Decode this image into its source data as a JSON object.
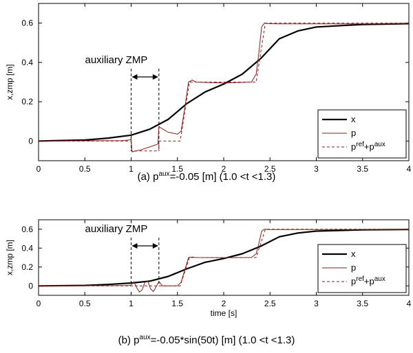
{
  "chart_data": [
    {
      "type": "line",
      "panel": "a",
      "ylabel": "x,zmp [m]",
      "xlabel": "",
      "xlim": [
        0,
        4
      ],
      "ylim": [
        -0.1,
        0.7
      ],
      "xticks": [
        "0",
        "0.5",
        "1",
        "1.5",
        "2",
        "2.5",
        "3",
        "3.5",
        "4"
      ],
      "yticks": [
        "0",
        "0.2",
        "0.4",
        "0.6"
      ],
      "annotation": "auxiliary ZMP",
      "annotation_span": [
        1.0,
        1.3
      ],
      "caption_main": "(a) p",
      "caption_sup": "aux",
      "caption_rest": "=-0.05 [m] (1.0 <t <1.3)",
      "legend": [
        {
          "key": "x",
          "label": "x",
          "sup1": "",
          "mid": "",
          "sup2": ""
        },
        {
          "key": "p",
          "label": "p",
          "sup1": "",
          "mid": "",
          "sup2": ""
        },
        {
          "key": "pref",
          "label": "p",
          "sup1": "ref",
          "mid": "+p",
          "sup2": "aux"
        }
      ],
      "legend_position": "bottom-right",
      "grid": false,
      "series": [
        {
          "name": "x",
          "color": "#000000",
          "style": "solid",
          "x": [
            0,
            0.5,
            0.75,
            1.0,
            1.2,
            1.4,
            1.6,
            1.8,
            2.0,
            2.2,
            2.4,
            2.6,
            2.8,
            3.0,
            3.5,
            4.0
          ],
          "y": [
            0,
            0.005,
            0.015,
            0.03,
            0.06,
            0.11,
            0.19,
            0.25,
            0.29,
            0.34,
            0.42,
            0.52,
            0.56,
            0.58,
            0.593,
            0.597
          ]
        },
        {
          "name": "p",
          "color": "#8b1a1a",
          "style": "solid",
          "x": [
            0,
            0.9,
            0.98,
            1.0,
            1.01,
            1.1,
            1.2,
            1.29,
            1.3,
            1.31,
            1.4,
            1.5,
            1.54,
            1.58,
            1.62,
            1.66,
            1.7,
            2.0,
            2.3,
            2.35,
            2.38,
            2.41,
            2.44,
            2.48,
            2.6,
            3.0,
            4.0
          ],
          "y": [
            0,
            0.002,
            0.005,
            0.01,
            -0.055,
            -0.045,
            -0.03,
            -0.015,
            0.075,
            0.07,
            0.045,
            0.035,
            0.05,
            0.17,
            0.3,
            0.31,
            0.3,
            0.295,
            0.3,
            0.34,
            0.45,
            0.58,
            0.6,
            0.597,
            0.596,
            0.596,
            0.596
          ]
        },
        {
          "name": "pref+paux",
          "color": "#8b1a1a",
          "style": "dashed",
          "x": [
            0,
            1.0,
            1.0,
            1.3,
            1.3,
            1.53,
            1.63,
            2.35,
            2.45,
            4.0
          ],
          "y": [
            0,
            0,
            -0.05,
            -0.05,
            0,
            0,
            0.3,
            0.3,
            0.6,
            0.6
          ]
        }
      ]
    },
    {
      "type": "line",
      "panel": "b",
      "ylabel": "x,zmp [m]",
      "xlabel": "time [s]",
      "xlim": [
        0,
        4
      ],
      "ylim": [
        -0.1,
        0.7
      ],
      "xticks": [
        "0",
        "0.5",
        "1",
        "1.5",
        "2",
        "2.5",
        "3",
        "3.5",
        "4"
      ],
      "yticks": [
        "0",
        "0.2",
        "0.4",
        "0.6"
      ],
      "annotation": "auxiliary ZMP",
      "annotation_span": [
        1.0,
        1.3
      ],
      "caption_main": "(b) p",
      "caption_sup": "aux",
      "caption_rest": "=-0.05*sin(50t) [m] (1.0 <t <1.3)",
      "legend": [
        {
          "key": "x",
          "label": "x",
          "sup1": "",
          "mid": "",
          "sup2": ""
        },
        {
          "key": "p",
          "label": "p",
          "sup1": "",
          "mid": "",
          "sup2": ""
        },
        {
          "key": "pref",
          "label": "p",
          "sup1": "ref",
          "mid": "+p",
          "sup2": "aux"
        }
      ],
      "legend_position": "bottom-right",
      "grid": false,
      "series": [
        {
          "name": "x",
          "color": "#000000",
          "style": "solid",
          "x": [
            0,
            0.5,
            0.75,
            1.0,
            1.2,
            1.4,
            1.6,
            1.8,
            2.0,
            2.2,
            2.4,
            2.6,
            2.8,
            3.0,
            3.5,
            4.0
          ],
          "y": [
            0,
            0.005,
            0.015,
            0.03,
            0.05,
            0.1,
            0.18,
            0.25,
            0.29,
            0.34,
            0.42,
            0.52,
            0.56,
            0.58,
            0.593,
            0.597
          ]
        },
        {
          "name": "p",
          "color": "#8b1a1a",
          "style": "solid",
          "x": [
            0,
            0.98,
            1.0,
            1.03,
            1.06,
            1.09,
            1.12,
            1.15,
            1.18,
            1.21,
            1.24,
            1.27,
            1.3,
            1.34,
            1.5,
            1.54,
            1.58,
            1.62,
            1.66,
            1.7,
            2.0,
            2.3,
            2.35,
            2.38,
            2.41,
            2.44,
            2.48,
            3.0,
            4.0
          ],
          "y": [
            0,
            0.003,
            0.01,
            0.045,
            -0.02,
            -0.065,
            -0.04,
            0.04,
            0.05,
            -0.03,
            -0.06,
            -0.01,
            0.045,
            0.0,
            0.0,
            0.04,
            0.17,
            0.3,
            0.305,
            0.3,
            0.298,
            0.3,
            0.34,
            0.45,
            0.58,
            0.6,
            0.597,
            0.596,
            0.596
          ]
        },
        {
          "name": "pref+paux",
          "color": "#8b1a1a",
          "style": "dashed",
          "x": [
            0,
            1.53,
            1.63,
            2.35,
            2.45,
            4.0
          ],
          "y": [
            0,
            0,
            0.3,
            0.3,
            0.6,
            0.6
          ]
        }
      ]
    }
  ]
}
